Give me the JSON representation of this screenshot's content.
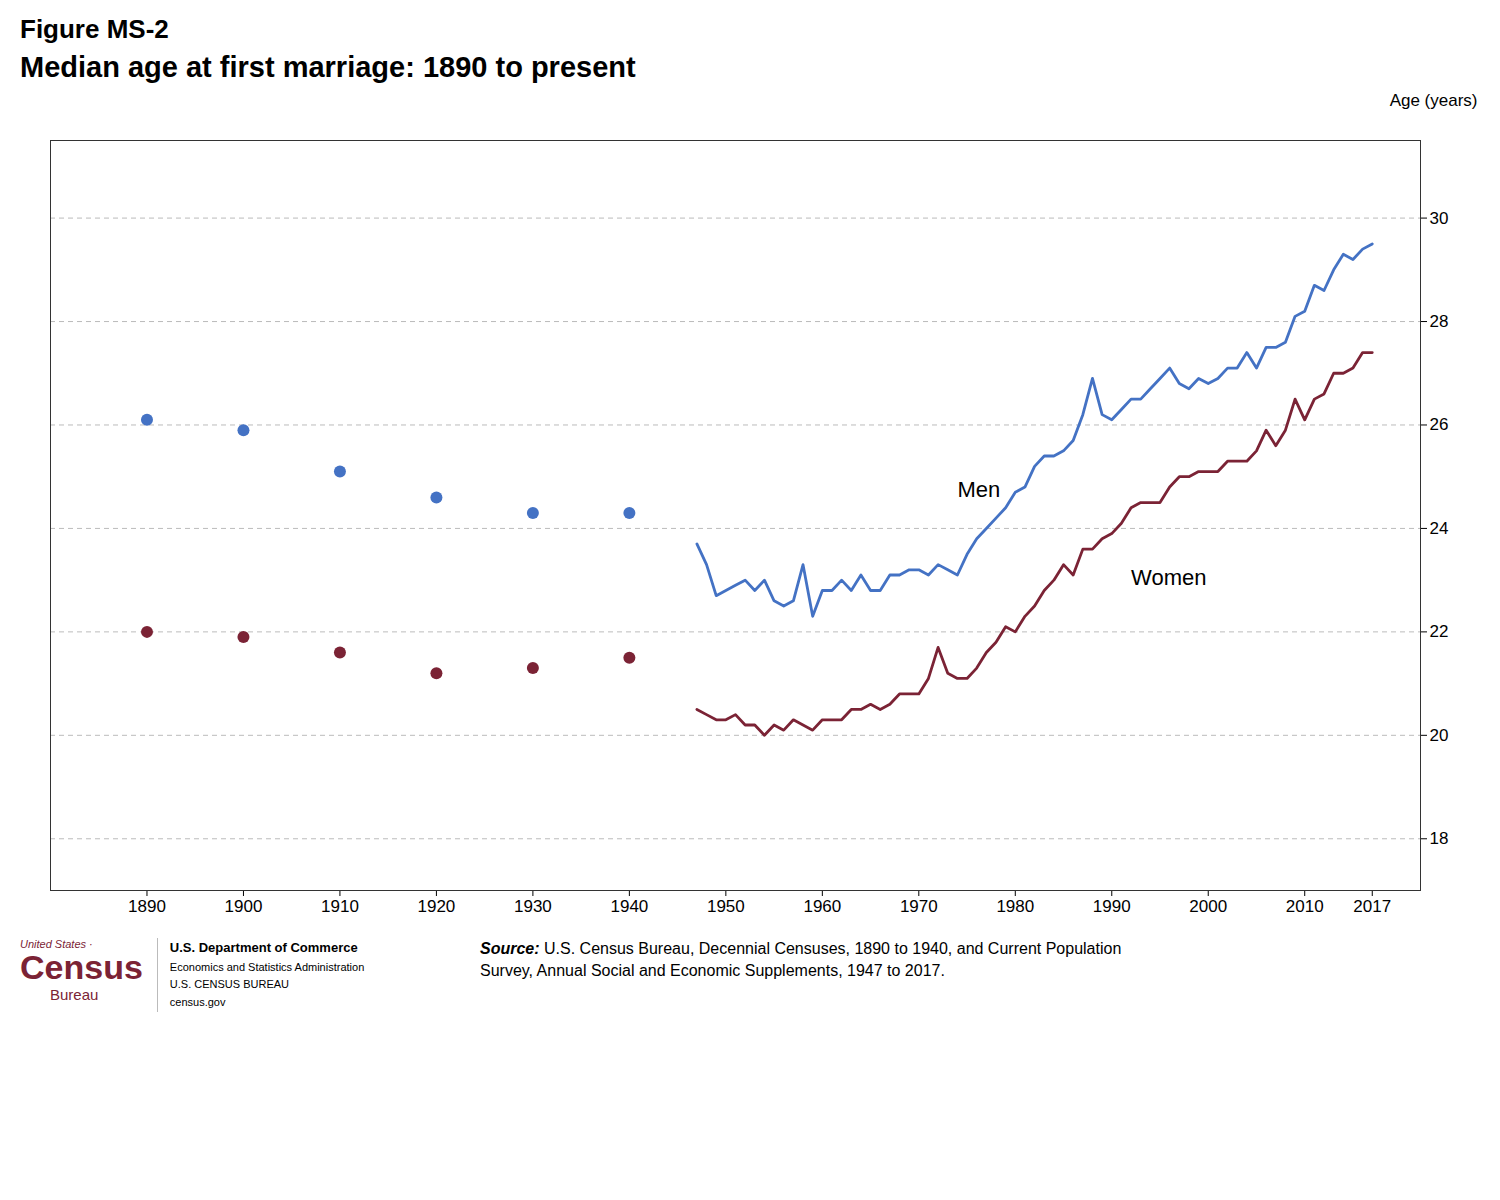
{
  "chart_data": {
    "type": "line",
    "title": "Figure MS-2",
    "subtitle": "Median age at first marriage: 1890 to present",
    "ylabel": "Age (years)",
    "source_label": "Source:",
    "source": "U.S. Census Bureau, Decennial Censuses, 1890 to 1940, and Current Population\nSurvey, Annual Social and Economic Supplements, 1947 to 2017.",
    "logo": [
      "United States",
      "·",
      "Census",
      "Bureau",
      "U.S. Department of Commerce",
      "Economics and Statistics Administration",
      "U.S. CENSUS BUREAU",
      "census.gov"
    ],
    "series": [
      {
        "name": "Men",
        "color": "#4472C4",
        "type": "scatter",
        "marker": "circle",
        "x": [
          1890,
          1900,
          1910,
          1920,
          1930,
          1940
        ],
        "values": [
          26.1,
          25.9,
          25.1,
          24.6,
          24.3,
          24.3
        ]
      },
      {
        "name": "Women",
        "color": "#7B2335",
        "type": "scatter",
        "marker": "circle",
        "x": [
          1890,
          1900,
          1910,
          1920,
          1930,
          1940
        ],
        "values": [
          22.0,
          21.9,
          21.6,
          21.2,
          21.3,
          21.5
        ]
      },
      {
        "name": "Men",
        "color": "#4472C4",
        "type": "line",
        "line_style": "solid",
        "x": [
          1947,
          1948,
          1949,
          1950,
          1951,
          1952,
          1953,
          1954,
          1955,
          1956,
          1957,
          1958,
          1959,
          1960,
          1961,
          1962,
          1963,
          1964,
          1965,
          1966,
          1967,
          1968,
          1969,
          1970,
          1971,
          1972,
          1973,
          1974,
          1975,
          1976,
          1977,
          1978,
          1979,
          1980,
          1981,
          1982,
          1983,
          1984,
          1985,
          1986,
          1987,
          1988,
          1989,
          1990,
          1991,
          1992,
          1993,
          1994,
          1995,
          1996,
          1997,
          1998,
          1999,
          2000,
          2001,
          2002,
          2003,
          2004,
          2005,
          2006,
          2007,
          2008,
          2009,
          2010,
          2011,
          2012,
          2013,
          2014,
          2015,
          2016,
          2017
        ],
        "values": [
          23.7,
          23.3,
          22.7,
          22.8,
          22.9,
          23.0,
          22.8,
          23.0,
          22.6,
          22.5,
          22.6,
          23.3,
          22.3,
          22.8,
          22.8,
          23.0,
          22.8,
          23.1,
          22.8,
          22.8,
          23.1,
          23.1,
          23.2,
          23.2,
          23.1,
          23.3,
          23.2,
          23.1,
          23.5,
          23.8,
          24.0,
          24.2,
          24.4,
          24.7,
          24.8,
          25.2,
          25.4,
          25.4,
          25.5,
          25.7,
          26.2,
          26.9,
          26.2,
          26.1,
          26.3,
          26.5,
          26.5,
          26.7,
          26.9,
          27.1,
          26.8,
          26.7,
          26.9,
          26.8,
          26.9,
          27.1,
          27.1,
          27.4,
          27.1,
          27.5,
          27.5,
          27.6,
          28.1,
          28.2,
          28.7,
          28.6,
          29.0,
          29.3,
          29.2,
          29.4,
          29.5
        ]
      },
      {
        "name": "Women",
        "color": "#7B2335",
        "type": "line",
        "line_style": "solid",
        "x": [
          1947,
          1948,
          1949,
          1950,
          1951,
          1952,
          1953,
          1954,
          1955,
          1956,
          1957,
          1958,
          1959,
          1960,
          1961,
          1962,
          1963,
          1964,
          1965,
          1966,
          1967,
          1968,
          1969,
          1970,
          1971,
          1972,
          1973,
          1974,
          1975,
          1976,
          1977,
          1978,
          1979,
          1980,
          1981,
          1982,
          1983,
          1984,
          1985,
          1986,
          1987,
          1988,
          1989,
          1990,
          1991,
          1992,
          1993,
          1994,
          1995,
          1996,
          1997,
          1998,
          1999,
          2000,
          2001,
          2002,
          2003,
          2004,
          2005,
          2006,
          2007,
          2008,
          2009,
          2010,
          2011,
          2012,
          2013,
          2014,
          2015,
          2016,
          2017
        ],
        "values": [
          20.5,
          20.4,
          20.3,
          20.3,
          20.4,
          20.2,
          20.2,
          20.0,
          20.2,
          20.1,
          20.3,
          20.2,
          20.1,
          20.3,
          20.3,
          20.3,
          20.5,
          20.5,
          20.6,
          20.5,
          20.6,
          20.8,
          20.8,
          20.8,
          21.1,
          21.7,
          21.2,
          21.1,
          21.1,
          21.3,
          21.6,
          21.8,
          22.1,
          22.0,
          22.3,
          22.5,
          22.8,
          23.0,
          23.3,
          23.1,
          23.6,
          23.6,
          23.8,
          23.9,
          24.1,
          24.4,
          24.5,
          24.5,
          24.5,
          24.8,
          25.0,
          25.0,
          25.1,
          25.1,
          25.1,
          25.3,
          25.3,
          25.3,
          25.5,
          25.9,
          25.6,
          25.9,
          26.5,
          26.1,
          26.5,
          26.6,
          27.0,
          27.0,
          27.1,
          27.4,
          27.4
        ]
      }
    ],
    "annotations": [
      {
        "text": "Men",
        "x": 1974,
        "y": 24.6
      },
      {
        "text": "Women",
        "x": 1992,
        "y": 22.9
      }
    ],
    "xlim": [
      1880,
      2022
    ],
    "xticks": [
      1890,
      1900,
      1910,
      1920,
      1930,
      1940,
      1950,
      1960,
      1970,
      1980,
      1990,
      2000,
      2010,
      2017
    ],
    "ylim": [
      17.0,
      31.5
    ],
    "yticks": [
      18,
      20,
      22,
      24,
      26,
      28,
      30
    ],
    "grid": "y"
  }
}
